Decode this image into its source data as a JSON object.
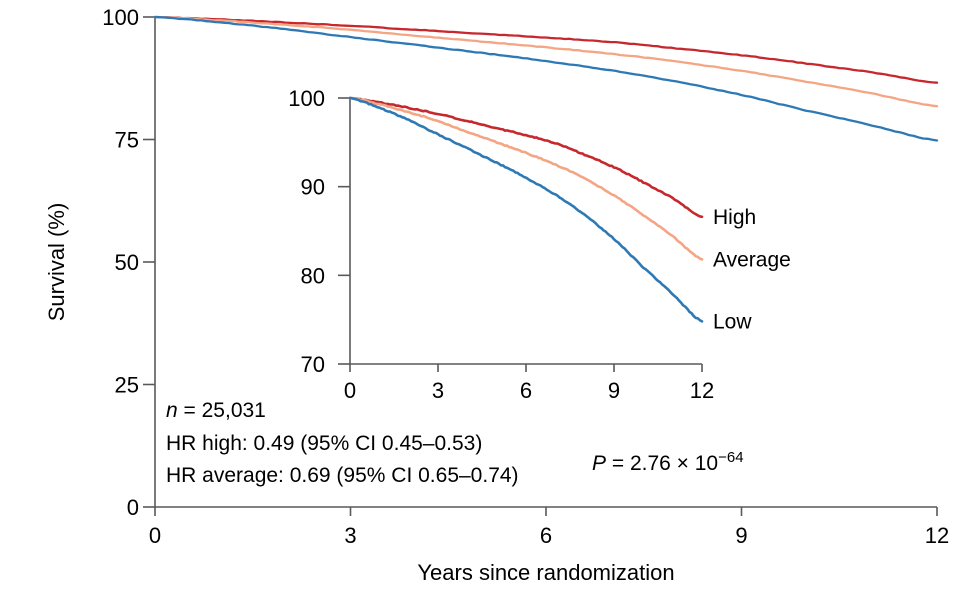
{
  "chart_data": {
    "type": "line",
    "title": "",
    "xlabel": "Years since randomization",
    "ylabel": "Survival (%)",
    "x": [
      0,
      1,
      2,
      3,
      4,
      5,
      6,
      7,
      8,
      9,
      10,
      11,
      12
    ],
    "series": [
      {
        "name": "High",
        "color": "#c6282e",
        "values": [
          100,
          99.5,
          98.9,
          98.2,
          97.4,
          96.6,
          95.8,
          94.9,
          93.6,
          92.2,
          90.5,
          88.7,
          86.6
        ]
      },
      {
        "name": "Average",
        "color": "#f4a583",
        "values": [
          100,
          99.3,
          98.4,
          97.4,
          96.2,
          95.0,
          93.8,
          92.5,
          90.9,
          89.0,
          86.8,
          84.4,
          81.8
        ]
      },
      {
        "name": "Low",
        "color": "#2d79b5",
        "values": [
          100,
          98.9,
          97.5,
          95.9,
          94.3,
          92.7,
          91.0,
          89.1,
          86.8,
          84.1,
          80.9,
          77.9,
          74.8
        ]
      }
    ],
    "main_axis": {
      "xlim": [
        0,
        12
      ],
      "ylim": [
        0,
        100
      ],
      "xticks": [
        0,
        3,
        6,
        9,
        12
      ],
      "yticks": [
        0,
        25,
        50,
        75,
        100
      ],
      "grid": false
    },
    "inset_axis": {
      "xlim": [
        0,
        12
      ],
      "ylim": [
        70,
        100
      ],
      "xticks": [
        0,
        3,
        6,
        9,
        12
      ],
      "yticks": [
        70,
        80,
        90,
        100
      ],
      "grid": false,
      "series_labels_position": "right"
    },
    "legend": {
      "position": "inset-right-of-curves",
      "entries": [
        "High",
        "Average",
        "Low"
      ]
    }
  },
  "annotations": {
    "n_italic": "n",
    "n_rest": " = 25,031",
    "hr_high": "HR high: 0.49 (95% CI 0.45–0.53)",
    "hr_average": "HR average: 0.69 (95% CI 0.65–0.74)",
    "p_italic": "P",
    "p_rest": " = 2.76 × 10",
    "p_exponent": "−64"
  },
  "colors": {
    "axis": "#58595b",
    "text": "#000000",
    "high": "#c6282e",
    "average": "#f4a583",
    "low": "#2d79b5"
  }
}
